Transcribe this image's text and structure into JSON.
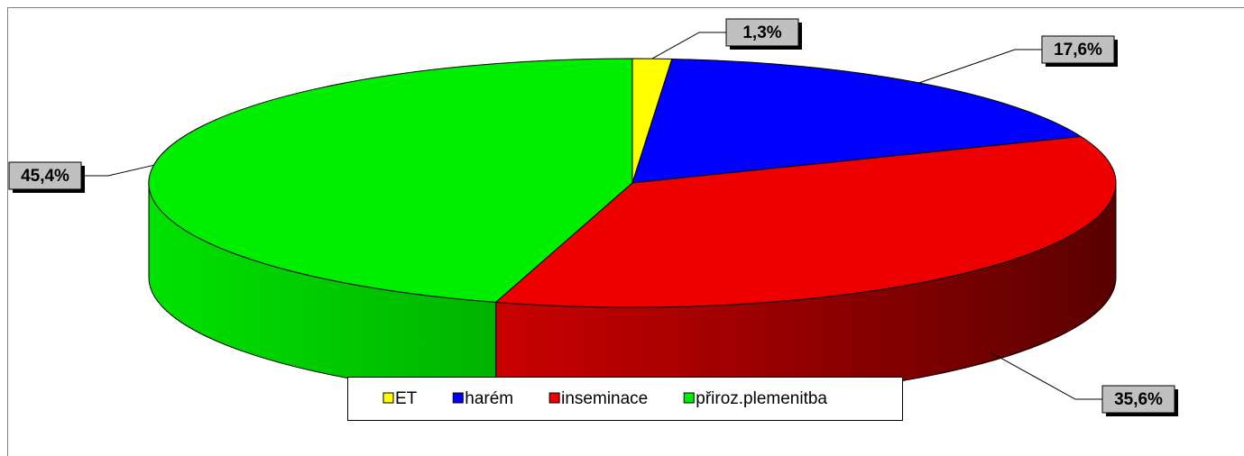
{
  "chart_data": {
    "type": "pie",
    "categories": [
      "ET",
      "harém",
      "inseminace",
      "přiroz.plemenitba"
    ],
    "values": [
      1.3,
      17.6,
      35.6,
      45.4
    ],
    "value_labels": [
      "1,3%",
      "17,6%",
      "35,6%",
      "45,4%"
    ],
    "colors": [
      "#ffff00",
      "#0000ff",
      "#ee0000",
      "#00ee00"
    ],
    "legend": "bottom"
  }
}
